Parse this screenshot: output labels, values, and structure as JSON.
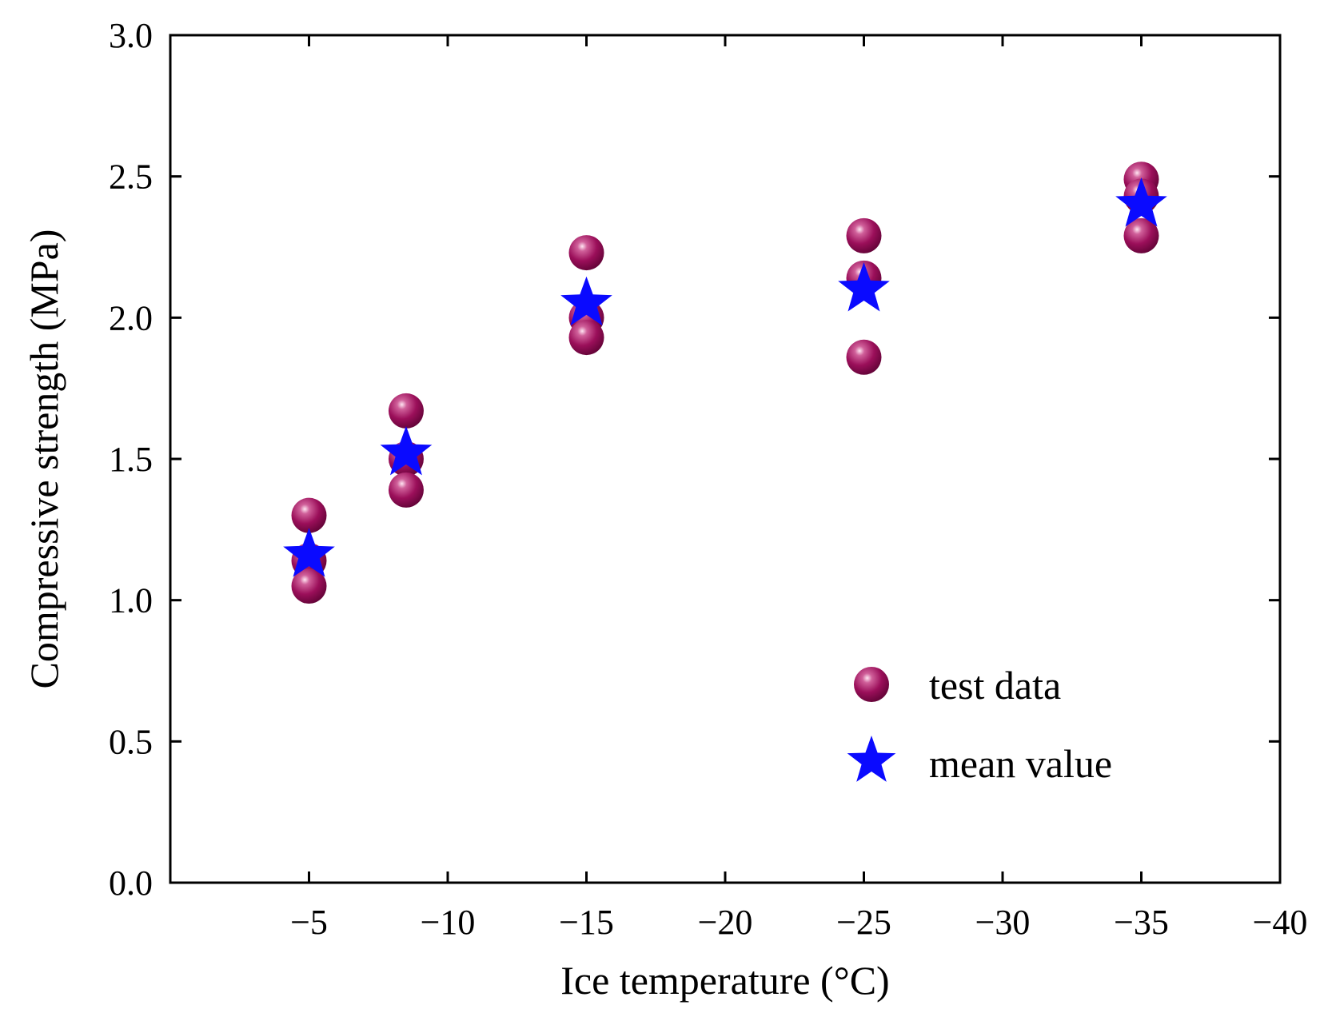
{
  "chart_data": {
    "type": "scatter",
    "title": "",
    "xlabel": "Ice temperature (°C)",
    "ylabel": "Compressive strength (MPa)",
    "xlim": [
      0,
      -40
    ],
    "ylim": [
      0.0,
      3.0
    ],
    "xticks": [
      -5,
      -10,
      -15,
      -20,
      -25,
      -30,
      -35,
      -40
    ],
    "xtick_labels": [
      "−5",
      "−10",
      "−15",
      "−20",
      "−25",
      "−30",
      "−35",
      "−40"
    ],
    "yticks": [
      0.0,
      0.5,
      1.0,
      1.5,
      2.0,
      2.5,
      3.0
    ],
    "ytick_labels": [
      "0.0",
      "0.5",
      "1.0",
      "1.5",
      "2.0",
      "2.5",
      "3.0"
    ],
    "grid": false,
    "legend_position": "bottom-right",
    "series": [
      {
        "name": "test data",
        "marker": "sphere",
        "color": "#9b0f5a",
        "points": [
          {
            "x": -5,
            "y": 1.3
          },
          {
            "x": -5,
            "y": 1.14
          },
          {
            "x": -5,
            "y": 1.05
          },
          {
            "x": -8.5,
            "y": 1.67
          },
          {
            "x": -8.5,
            "y": 1.5
          },
          {
            "x": -8.5,
            "y": 1.39
          },
          {
            "x": -15,
            "y": 2.23
          },
          {
            "x": -15,
            "y": 2.0
          },
          {
            "x": -15,
            "y": 1.93
          },
          {
            "x": -25,
            "y": 2.29
          },
          {
            "x": -25,
            "y": 2.14
          },
          {
            "x": -25,
            "y": 1.86
          },
          {
            "x": -35,
            "y": 2.49
          },
          {
            "x": -35,
            "y": 2.43
          },
          {
            "x": -35,
            "y": 2.29
          }
        ]
      },
      {
        "name": "mean value",
        "marker": "star",
        "color": "#0a0aff",
        "points": [
          {
            "x": -5,
            "y": 1.16
          },
          {
            "x": -8.5,
            "y": 1.52
          },
          {
            "x": -15,
            "y": 2.05
          },
          {
            "x": -25,
            "y": 2.1
          },
          {
            "x": -35,
            "y": 2.4
          }
        ]
      }
    ]
  }
}
